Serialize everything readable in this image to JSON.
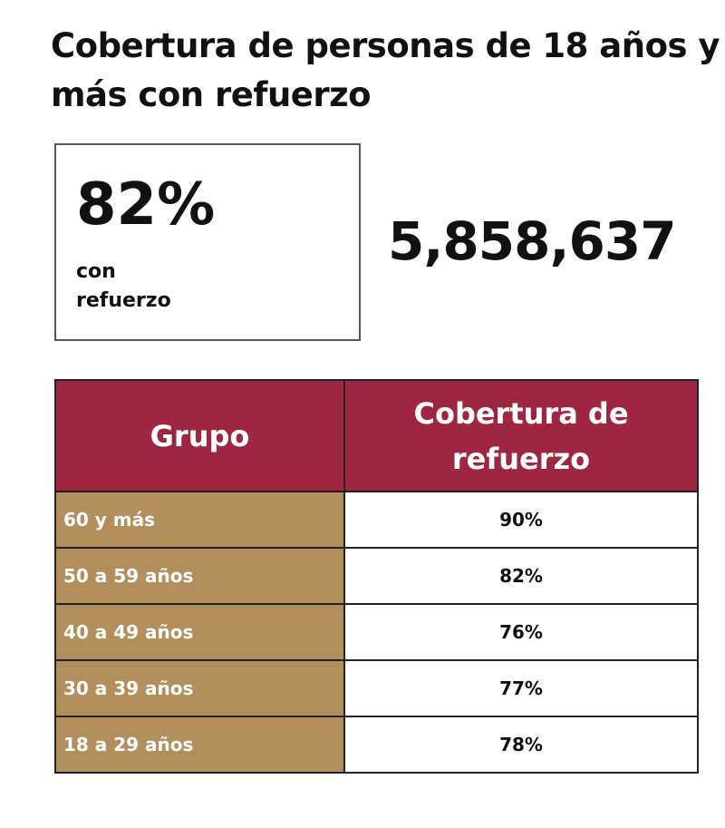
{
  "title": "Cobertura de personas de 18 años y más con refuerzo",
  "summary": {
    "percent": "82%",
    "percent_label": "con refuerzo",
    "total": "5,858,637"
  },
  "table": {
    "headers": [
      "Grupo",
      "Cobertura de refuerzo"
    ],
    "rows": [
      {
        "group": "60 y más",
        "value": "90%"
      },
      {
        "group": "50 a 59 años",
        "value": "82%"
      },
      {
        "group": "40 a 49 años",
        "value": "76%"
      },
      {
        "group": "30 a 39 años",
        "value": "77%"
      },
      {
        "group": "18 a 29 años",
        "value": "78%"
      }
    ]
  },
  "colors": {
    "header": "#9f2641",
    "group_cell": "#b38e5d"
  }
}
